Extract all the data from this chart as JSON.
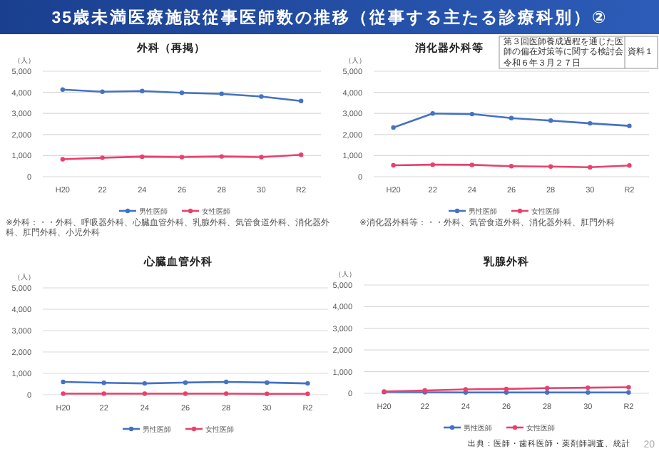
{
  "chart_data": [
    {
      "type": "line",
      "title": "外科（再掲）",
      "ylabel": "（人）",
      "categories": [
        "H20",
        "22",
        "24",
        "26",
        "28",
        "30",
        "R2"
      ],
      "series": [
        {
          "name": "男性医師",
          "color": "#4472c4",
          "values": [
            4130,
            4030,
            4060,
            3980,
            3930,
            3800,
            3590
          ]
        },
        {
          "name": "女性医師",
          "color": "#e8416b",
          "values": [
            830,
            900,
            950,
            930,
            960,
            930,
            1040
          ]
        }
      ],
      "ylim": [
        0,
        5000
      ],
      "yticks": [
        {
          "value": 0,
          "label": "0"
        },
        {
          "value": 1000,
          "label": "1,000"
        },
        {
          "value": 2000,
          "label": "2,000"
        },
        {
          "value": 3000,
          "label": "3,000"
        },
        {
          "value": 4000,
          "label": "4,000"
        },
        {
          "value": 5000,
          "label": "5,000"
        }
      ],
      "grid": "y",
      "legend": "bottom",
      "marker": "circle",
      "annotations": [
        "35歳未満医療施設従事医師数の推移（従事する主たる診療科別）②",
        "第３回医師養成過程を通じた医師の偏在対策等に関する検討会",
        "令和６年３月２７日",
        "資料１",
        "※外科：・・外科、呼吸器外科、心臓血管外科、乳腺外科、気管食道外科、消化器外科、肛門外科、小児外科"
      ]
    },
    {
      "type": "line",
      "title": "消化器外科等",
      "ylabel": "（人）",
      "categories": [
        "H20",
        "22",
        "24",
        "26",
        "28",
        "30",
        "R2"
      ],
      "series": [
        {
          "name": "男性医師",
          "color": "#4472c4",
          "values": [
            2330,
            3000,
            2970,
            2780,
            2660,
            2530,
            2410
          ]
        },
        {
          "name": "女性医師",
          "color": "#e8416b",
          "values": [
            540,
            570,
            560,
            500,
            480,
            450,
            530
          ]
        }
      ],
      "ylim": [
        0,
        5000
      ],
      "yticks": [
        {
          "value": 0,
          "label": "0"
        },
        {
          "value": 1000,
          "label": "1,000"
        },
        {
          "value": 2000,
          "label": "2,000"
        },
        {
          "value": 3000,
          "label": "3,000"
        },
        {
          "value": 4000,
          "label": "4,000"
        },
        {
          "value": 5000,
          "label": "5,000"
        }
      ],
      "grid": "y",
      "legend": "bottom",
      "marker": "circle",
      "annotations": [
        "※消化器外科等：・・外科、気管食道外科、消化器外科、肛門外科"
      ]
    },
    {
      "type": "line",
      "title": "心臓血管外科",
      "ylabel": "（人）",
      "categories": [
        "H20",
        "22",
        "24",
        "26",
        "28",
        "30",
        "R2"
      ],
      "series": [
        {
          "name": "男性医師",
          "color": "#4472c4",
          "values": [
            600,
            560,
            530,
            570,
            600,
            570,
            530
          ]
        },
        {
          "name": "女性医師",
          "color": "#e8416b",
          "values": [
            50,
            50,
            50,
            50,
            50,
            40,
            40
          ]
        }
      ],
      "ylim": [
        0,
        5000
      ],
      "yticks": [
        {
          "value": 0,
          "label": "0"
        },
        {
          "value": 1000,
          "label": "1,000"
        },
        {
          "value": 2000,
          "label": "2,000"
        },
        {
          "value": 3000,
          "label": "3,000"
        },
        {
          "value": 4000,
          "label": "4,000"
        },
        {
          "value": 5000,
          "label": "5,000"
        }
      ],
      "grid": "y",
      "legend": "bottom",
      "marker": "circle"
    },
    {
      "type": "line",
      "title": "乳腺外科",
      "ylabel": "（人）",
      "categories": [
        "H20",
        "22",
        "24",
        "26",
        "28",
        "30",
        "R2"
      ],
      "series": [
        {
          "name": "男性医師",
          "color": "#4472c4",
          "values": [
            60,
            50,
            40,
            40,
            40,
            40,
            40
          ]
        },
        {
          "name": "女性医師",
          "color": "#e8416b",
          "values": [
            80,
            130,
            180,
            200,
            240,
            260,
            280
          ]
        }
      ],
      "ylim": [
        0,
        5000
      ],
      "yticks": [
        {
          "value": 0,
          "label": "0"
        },
        {
          "value": 1000,
          "label": "1,000"
        },
        {
          "value": 2000,
          "label": "2,000"
        },
        {
          "value": 3000,
          "label": "3,000"
        },
        {
          "value": 4000,
          "label": "4,000"
        },
        {
          "value": 5000,
          "label": "5,000"
        }
      ],
      "grid": "y",
      "legend": "bottom",
      "marker": "circle",
      "annotations": [
        "出典：医師・歯科医師・薬剤師調査、統計",
        "20"
      ]
    }
  ]
}
